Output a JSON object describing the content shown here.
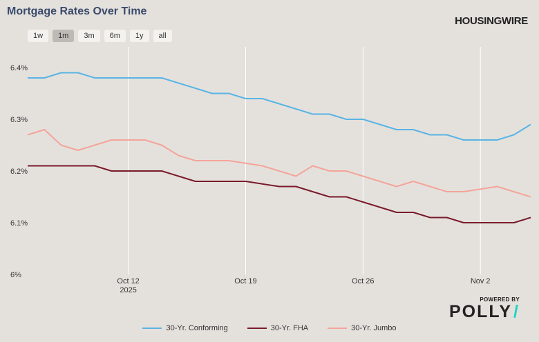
{
  "title": "Mortgage Rates Over Time",
  "brand": "HOUSINGWIRE",
  "range_buttons": [
    {
      "label": "1w",
      "active": false
    },
    {
      "label": "1m",
      "active": true
    },
    {
      "label": "3m",
      "active": false
    },
    {
      "label": "6m",
      "active": false
    },
    {
      "label": "1y",
      "active": false
    },
    {
      "label": "all",
      "active": false
    }
  ],
  "powered_by": {
    "line1": "POWERED BY",
    "line2": "POLLY",
    "accent": "#1bd6c3"
  },
  "chart_data": {
    "type": "line",
    "title": "Mortgage Rates Over Time",
    "x_range": [
      "2025-10-06",
      "2025-11-05"
    ],
    "ylim": [
      6.0,
      6.44
    ],
    "grid": "vertical",
    "legend_position": "bottom",
    "y_ticks": [
      {
        "value": 6.0,
        "label": "6%"
      },
      {
        "value": 6.1,
        "label": "6.1%"
      },
      {
        "value": 6.2,
        "label": "6.2%"
      },
      {
        "value": 6.3,
        "label": "6.3%"
      },
      {
        "value": 6.4,
        "label": "6.4%"
      }
    ],
    "x_ticks": [
      {
        "date": "2025-10-12",
        "label": "Oct 12",
        "sublabel": "2025"
      },
      {
        "date": "2025-10-19",
        "label": "Oct 19",
        "sublabel": ""
      },
      {
        "date": "2025-10-26",
        "label": "Oct 26",
        "sublabel": ""
      },
      {
        "date": "2025-11-02",
        "label": "Nov 2",
        "sublabel": ""
      }
    ],
    "series": [
      {
        "name": "30-Yr. Conforming",
        "color": "#5ab4e3",
        "points": [
          [
            "2025-10-06",
            6.38
          ],
          [
            "2025-10-07",
            6.38
          ],
          [
            "2025-10-08",
            6.39
          ],
          [
            "2025-10-09",
            6.39
          ],
          [
            "2025-10-10",
            6.38
          ],
          [
            "2025-10-11",
            6.38
          ],
          [
            "2025-10-12",
            6.38
          ],
          [
            "2025-10-13",
            6.38
          ],
          [
            "2025-10-14",
            6.38
          ],
          [
            "2025-10-15",
            6.37
          ],
          [
            "2025-10-16",
            6.36
          ],
          [
            "2025-10-17",
            6.35
          ],
          [
            "2025-10-18",
            6.35
          ],
          [
            "2025-10-19",
            6.34
          ],
          [
            "2025-10-20",
            6.34
          ],
          [
            "2025-10-21",
            6.33
          ],
          [
            "2025-10-22",
            6.32
          ],
          [
            "2025-10-23",
            6.31
          ],
          [
            "2025-10-24",
            6.31
          ],
          [
            "2025-10-25",
            6.3
          ],
          [
            "2025-10-26",
            6.3
          ],
          [
            "2025-10-27",
            6.29
          ],
          [
            "2025-10-28",
            6.28
          ],
          [
            "2025-10-29",
            6.28
          ],
          [
            "2025-10-30",
            6.27
          ],
          [
            "2025-10-31",
            6.27
          ],
          [
            "2025-11-01",
            6.26
          ],
          [
            "2025-11-02",
            6.26
          ],
          [
            "2025-11-03",
            6.26
          ],
          [
            "2025-11-04",
            6.27
          ],
          [
            "2025-11-05",
            6.29
          ]
        ]
      },
      {
        "name": "30-Yr. FHA",
        "color": "#7a1a2a",
        "points": [
          [
            "2025-10-06",
            6.21
          ],
          [
            "2025-10-07",
            6.21
          ],
          [
            "2025-10-08",
            6.21
          ],
          [
            "2025-10-09",
            6.21
          ],
          [
            "2025-10-10",
            6.21
          ],
          [
            "2025-10-11",
            6.2
          ],
          [
            "2025-10-12",
            6.2
          ],
          [
            "2025-10-13",
            6.2
          ],
          [
            "2025-10-14",
            6.2
          ],
          [
            "2025-10-15",
            6.19
          ],
          [
            "2025-10-16",
            6.18
          ],
          [
            "2025-10-17",
            6.18
          ],
          [
            "2025-10-18",
            6.18
          ],
          [
            "2025-10-19",
            6.18
          ],
          [
            "2025-10-20",
            6.175
          ],
          [
            "2025-10-21",
            6.17
          ],
          [
            "2025-10-22",
            6.17
          ],
          [
            "2025-10-23",
            6.16
          ],
          [
            "2025-10-24",
            6.15
          ],
          [
            "2025-10-25",
            6.15
          ],
          [
            "2025-10-26",
            6.14
          ],
          [
            "2025-10-27",
            6.13
          ],
          [
            "2025-10-28",
            6.12
          ],
          [
            "2025-10-29",
            6.12
          ],
          [
            "2025-10-30",
            6.11
          ],
          [
            "2025-10-31",
            6.11
          ],
          [
            "2025-11-01",
            6.1
          ],
          [
            "2025-11-02",
            6.1
          ],
          [
            "2025-11-03",
            6.1
          ],
          [
            "2025-11-04",
            6.1
          ],
          [
            "2025-11-05",
            6.11
          ]
        ]
      },
      {
        "name": "30-Yr. Jumbo",
        "color": "#f4a49a",
        "points": [
          [
            "2025-10-06",
            6.27
          ],
          [
            "2025-10-07",
            6.28
          ],
          [
            "2025-10-08",
            6.25
          ],
          [
            "2025-10-09",
            6.24
          ],
          [
            "2025-10-10",
            6.25
          ],
          [
            "2025-10-11",
            6.26
          ],
          [
            "2025-10-12",
            6.26
          ],
          [
            "2025-10-13",
            6.26
          ],
          [
            "2025-10-14",
            6.25
          ],
          [
            "2025-10-15",
            6.23
          ],
          [
            "2025-10-16",
            6.22
          ],
          [
            "2025-10-17",
            6.22
          ],
          [
            "2025-10-18",
            6.22
          ],
          [
            "2025-10-19",
            6.215
          ],
          [
            "2025-10-20",
            6.21
          ],
          [
            "2025-10-21",
            6.2
          ],
          [
            "2025-10-22",
            6.19
          ],
          [
            "2025-10-23",
            6.21
          ],
          [
            "2025-10-24",
            6.2
          ],
          [
            "2025-10-25",
            6.2
          ],
          [
            "2025-10-26",
            6.19
          ],
          [
            "2025-10-27",
            6.18
          ],
          [
            "2025-10-28",
            6.17
          ],
          [
            "2025-10-29",
            6.18
          ],
          [
            "2025-10-30",
            6.17
          ],
          [
            "2025-10-31",
            6.16
          ],
          [
            "2025-11-01",
            6.16
          ],
          [
            "2025-11-02",
            6.165
          ],
          [
            "2025-11-03",
            6.17
          ],
          [
            "2025-11-04",
            6.16
          ],
          [
            "2025-11-05",
            6.15
          ]
        ]
      }
    ]
  }
}
